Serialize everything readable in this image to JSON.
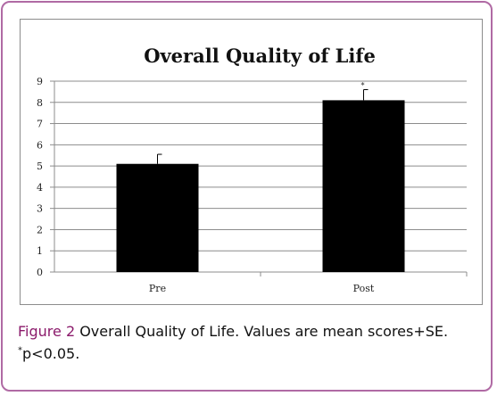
{
  "chart_data": {
    "type": "bar",
    "title": "Overall Quality of Life",
    "categories": [
      "Pre",
      "Post"
    ],
    "values": [
      5.1,
      8.1
    ],
    "error": [
      0.45,
      0.5
    ],
    "significance": [
      "",
      "*"
    ],
    "ylim": [
      0,
      9
    ],
    "yticks": [
      "0",
      "1",
      "2",
      "3",
      "4",
      "5",
      "6",
      "7",
      "8",
      "9"
    ],
    "xlabel": "",
    "ylabel": "",
    "grid": true,
    "bar_color": "#000000",
    "grid_color": "#8c8c8c"
  },
  "caption": {
    "label": "Figure 2",
    "text": " Overall Quality of Life. Values are mean scores+SE.",
    "star": "*",
    "note": "p<0.05."
  }
}
